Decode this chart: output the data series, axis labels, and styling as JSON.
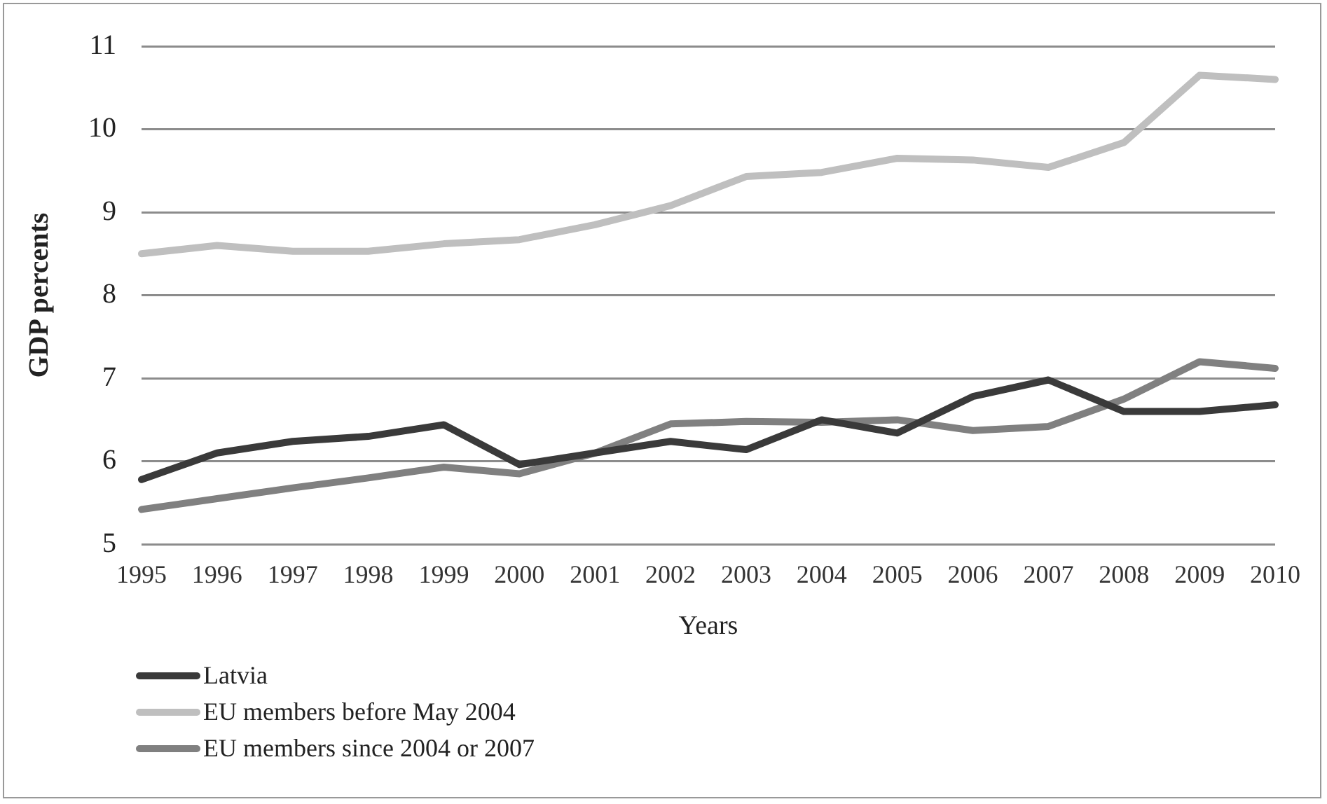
{
  "chart_data": {
    "type": "line",
    "xlabel": "Years",
    "ylabel": "GDP percents",
    "categories": [
      "1995",
      "1996",
      "1997",
      "1998",
      "1999",
      "2000",
      "2001",
      "2002",
      "2003",
      "2004",
      "2005",
      "2006",
      "2007",
      "2008",
      "2009",
      "2010"
    ],
    "series": [
      {
        "name": "Latvia",
        "color": "#3a3a3a",
        "values": [
          5.78,
          6.1,
          6.24,
          6.3,
          6.44,
          5.96,
          6.1,
          6.24,
          6.14,
          6.5,
          6.34,
          6.78,
          6.98,
          6.6,
          6.6,
          6.68
        ]
      },
      {
        "name": "EU members before May 2004",
        "color": "#bfbfbf",
        "values": [
          8.5,
          8.6,
          8.53,
          8.53,
          8.62,
          8.67,
          8.85,
          9.08,
          9.43,
          9.48,
          9.65,
          9.63,
          9.54,
          9.84,
          10.65,
          10.6
        ]
      },
      {
        "name": "EU members since 2004 or 2007",
        "color": "#808080",
        "values": [
          5.42,
          5.55,
          5.68,
          5.8,
          5.93,
          5.85,
          6.1,
          6.45,
          6.48,
          6.47,
          6.5,
          6.37,
          6.42,
          6.75,
          7.2,
          7.12
        ]
      }
    ],
    "ylim": [
      5,
      11
    ],
    "yticks": [
      5,
      6,
      7,
      8,
      9,
      10,
      11
    ],
    "grid": "y",
    "legend": "bottom",
    "marker": "none",
    "line_style": "solid"
  }
}
